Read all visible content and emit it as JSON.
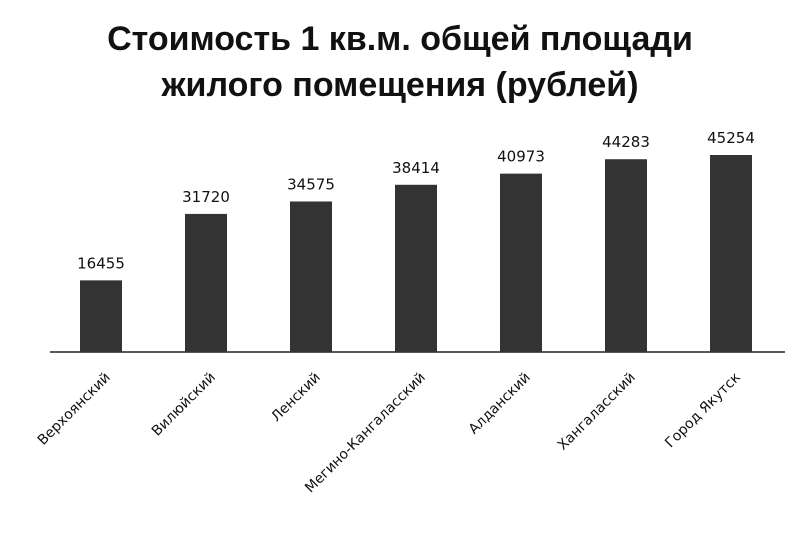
{
  "chart_data": {
    "type": "bar",
    "title": [
      "Стоимость 1 кв.м. общей площади",
      "жилого помещения (рублей)"
    ],
    "categories": [
      "Верхоянский",
      "Вилюйский",
      "Ленский",
      "Мегино-Кангаласский",
      "Алданский",
      "Хангаласский",
      "Город Якутск"
    ],
    "values": [
      16455,
      31720,
      34575,
      38414,
      40973,
      44283,
      45254
    ],
    "color": "#333333"
  }
}
